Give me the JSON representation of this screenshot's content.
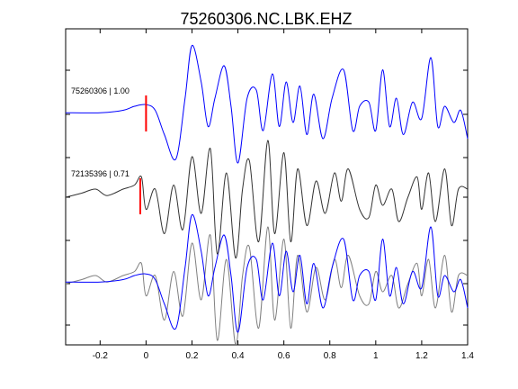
{
  "chart_data": {
    "type": "line",
    "title": "75260306.NC.LBK.EHZ",
    "xlabel": "",
    "ylabel": "",
    "xlim": [
      -0.35,
      1.4
    ],
    "x_ticks": [
      -0.2,
      0,
      0.2,
      0.4,
      0.6,
      0.8,
      1,
      1.2,
      1.4
    ],
    "x_tick_labels": [
      "-0.2",
      "0",
      "0.2",
      "0.4",
      "0.6",
      "0.8",
      "1",
      "1.2",
      "1.4"
    ],
    "grid": false,
    "series": [
      {
        "name": "75260306 | 1.00",
        "color": "#0000ff",
        "baseline": 2,
        "pick_time": 0.0,
        "values": [
          [
            -0.35,
            0.02
          ],
          [
            -0.2,
            0.02
          ],
          [
            -0.1,
            0.05
          ],
          [
            -0.05,
            0.1
          ],
          [
            0.0,
            0.12
          ],
          [
            0.04,
            0.05
          ],
          [
            0.08,
            -0.25
          ],
          [
            0.13,
            -0.55
          ],
          [
            0.17,
            0.2
          ],
          [
            0.2,
            0.85
          ],
          [
            0.24,
            0.4
          ],
          [
            0.27,
            -0.15
          ],
          [
            0.3,
            0.2
          ],
          [
            0.34,
            0.6
          ],
          [
            0.37,
            0.1
          ],
          [
            0.4,
            -0.6
          ],
          [
            0.44,
            0.2
          ],
          [
            0.48,
            0.3
          ],
          [
            0.51,
            -0.2
          ],
          [
            0.55,
            0.5
          ],
          [
            0.58,
            -0.15
          ],
          [
            0.61,
            0.4
          ],
          [
            0.64,
            -0.1
          ],
          [
            0.67,
            0.35
          ],
          [
            0.7,
            -0.25
          ],
          [
            0.73,
            0.25
          ],
          [
            0.77,
            -0.3
          ],
          [
            0.81,
            0.2
          ],
          [
            0.86,
            0.55
          ],
          [
            0.9,
            -0.2
          ],
          [
            0.93,
            0.1
          ],
          [
            0.97,
            0.15
          ],
          [
            1.0,
            -0.2
          ],
          [
            1.03,
            0.55
          ],
          [
            1.06,
            -0.15
          ],
          [
            1.09,
            0.2
          ],
          [
            1.12,
            -0.25
          ],
          [
            1.16,
            0.15
          ],
          [
            1.2,
            -0.05
          ],
          [
            1.24,
            0.7
          ],
          [
            1.27,
            -0.15
          ],
          [
            1.3,
            0.1
          ],
          [
            1.34,
            -0.1
          ],
          [
            1.37,
            0.05
          ],
          [
            1.4,
            -0.3
          ]
        ]
      },
      {
        "name": "72135396 | 0.71",
        "color": "#333333",
        "baseline": 1,
        "pick_time": -0.025,
        "values": [
          [
            -0.35,
            0.0
          ],
          [
            -0.28,
            0.05
          ],
          [
            -0.22,
            0.1
          ],
          [
            -0.17,
            0.02
          ],
          [
            -0.1,
            0.1
          ],
          [
            -0.05,
            0.15
          ],
          [
            -0.02,
            0.25
          ],
          [
            0.0,
            -0.15
          ],
          [
            0.04,
            0.1
          ],
          [
            0.08,
            -0.45
          ],
          [
            0.12,
            0.15
          ],
          [
            0.16,
            -0.4
          ],
          [
            0.2,
            0.5
          ],
          [
            0.24,
            -0.2
          ],
          [
            0.28,
            0.6
          ],
          [
            0.31,
            -0.7
          ],
          [
            0.35,
            0.3
          ],
          [
            0.39,
            -0.75
          ],
          [
            0.42,
            0.1
          ],
          [
            0.45,
            0.45
          ],
          [
            0.49,
            -0.55
          ],
          [
            0.53,
            0.7
          ],
          [
            0.56,
            -0.45
          ],
          [
            0.6,
            0.55
          ],
          [
            0.63,
            -0.55
          ],
          [
            0.66,
            0.35
          ],
          [
            0.7,
            -0.35
          ],
          [
            0.74,
            0.2
          ],
          [
            0.78,
            -0.2
          ],
          [
            0.82,
            0.3
          ],
          [
            0.85,
            -0.05
          ],
          [
            0.88,
            0.35
          ],
          [
            0.93,
            -0.15
          ],
          [
            0.97,
            -0.25
          ],
          [
            1.0,
            0.15
          ],
          [
            1.03,
            -0.1
          ],
          [
            1.07,
            0.1
          ],
          [
            1.1,
            -0.3
          ],
          [
            1.14,
            0.0
          ],
          [
            1.18,
            0.25
          ],
          [
            1.2,
            -0.15
          ],
          [
            1.23,
            0.3
          ],
          [
            1.26,
            -0.3
          ],
          [
            1.3,
            0.35
          ],
          [
            1.33,
            -0.35
          ],
          [
            1.36,
            0.1
          ],
          [
            1.4,
            0.1
          ]
        ]
      }
    ],
    "overlay": {
      "baseline": 0,
      "series": [
        {
          "source": "72135396 | 0.71",
          "color": "#808080"
        },
        {
          "source": "75260306 | 1.00",
          "color": "#0000ff"
        }
      ]
    },
    "picks": {
      "color": "#ff0000"
    }
  }
}
